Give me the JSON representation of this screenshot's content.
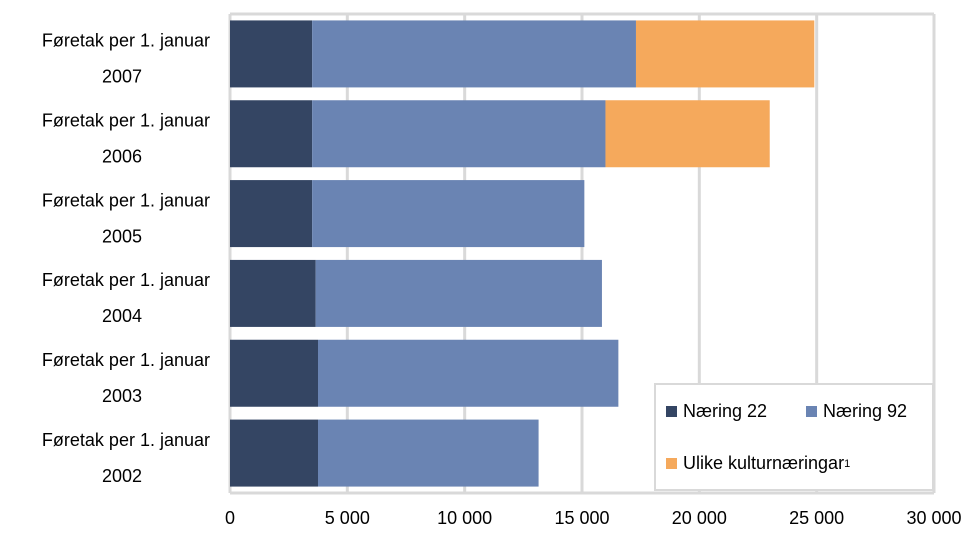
{
  "chart_data": {
    "type": "bar",
    "orientation": "horizontal",
    "stacked": true,
    "categories": [
      [
        "Føretak per 1. januar",
        "2007"
      ],
      [
        "Føretak per 1. januar",
        "2006"
      ],
      [
        "Føretak per 1. januar",
        "2005"
      ],
      [
        "Føretak per 1. januar",
        "2004"
      ],
      [
        "Føretak per 1. januar",
        "2003"
      ],
      [
        "Føretak per 1. januar",
        "2002"
      ]
    ],
    "series": [
      {
        "name": "Næring 22",
        "color": "#344563",
        "values": [
          3500,
          3500,
          3500,
          3650,
          3750,
          3750
        ]
      },
      {
        "name": "Næring 92",
        "color": "#6a84b3",
        "values": [
          13800,
          12500,
          11600,
          12200,
          12800,
          9400
        ]
      },
      {
        "name": "Ulike kulturnæringar",
        "color": "#f5a95c",
        "values": [
          7600,
          7000,
          0,
          0,
          0,
          0
        ]
      }
    ],
    "xlim": [
      0,
      30000
    ],
    "xticks": [
      0,
      5000,
      10000,
      15000,
      20000,
      25000,
      30000
    ],
    "xtick_labels": [
      "0",
      "5 000",
      "10 000",
      "15 000",
      "20 000",
      "25 000",
      "30 000"
    ],
    "grid": true,
    "legend_position": "bottom-right"
  },
  "legend": {
    "items": [
      {
        "label": "Næring 22",
        "color": "#344563"
      },
      {
        "label": "Næring 92",
        "color": "#6a84b3"
      },
      {
        "label": "Ulike kulturnæringar",
        "sup": "1",
        "color": "#f5a95c"
      }
    ]
  }
}
